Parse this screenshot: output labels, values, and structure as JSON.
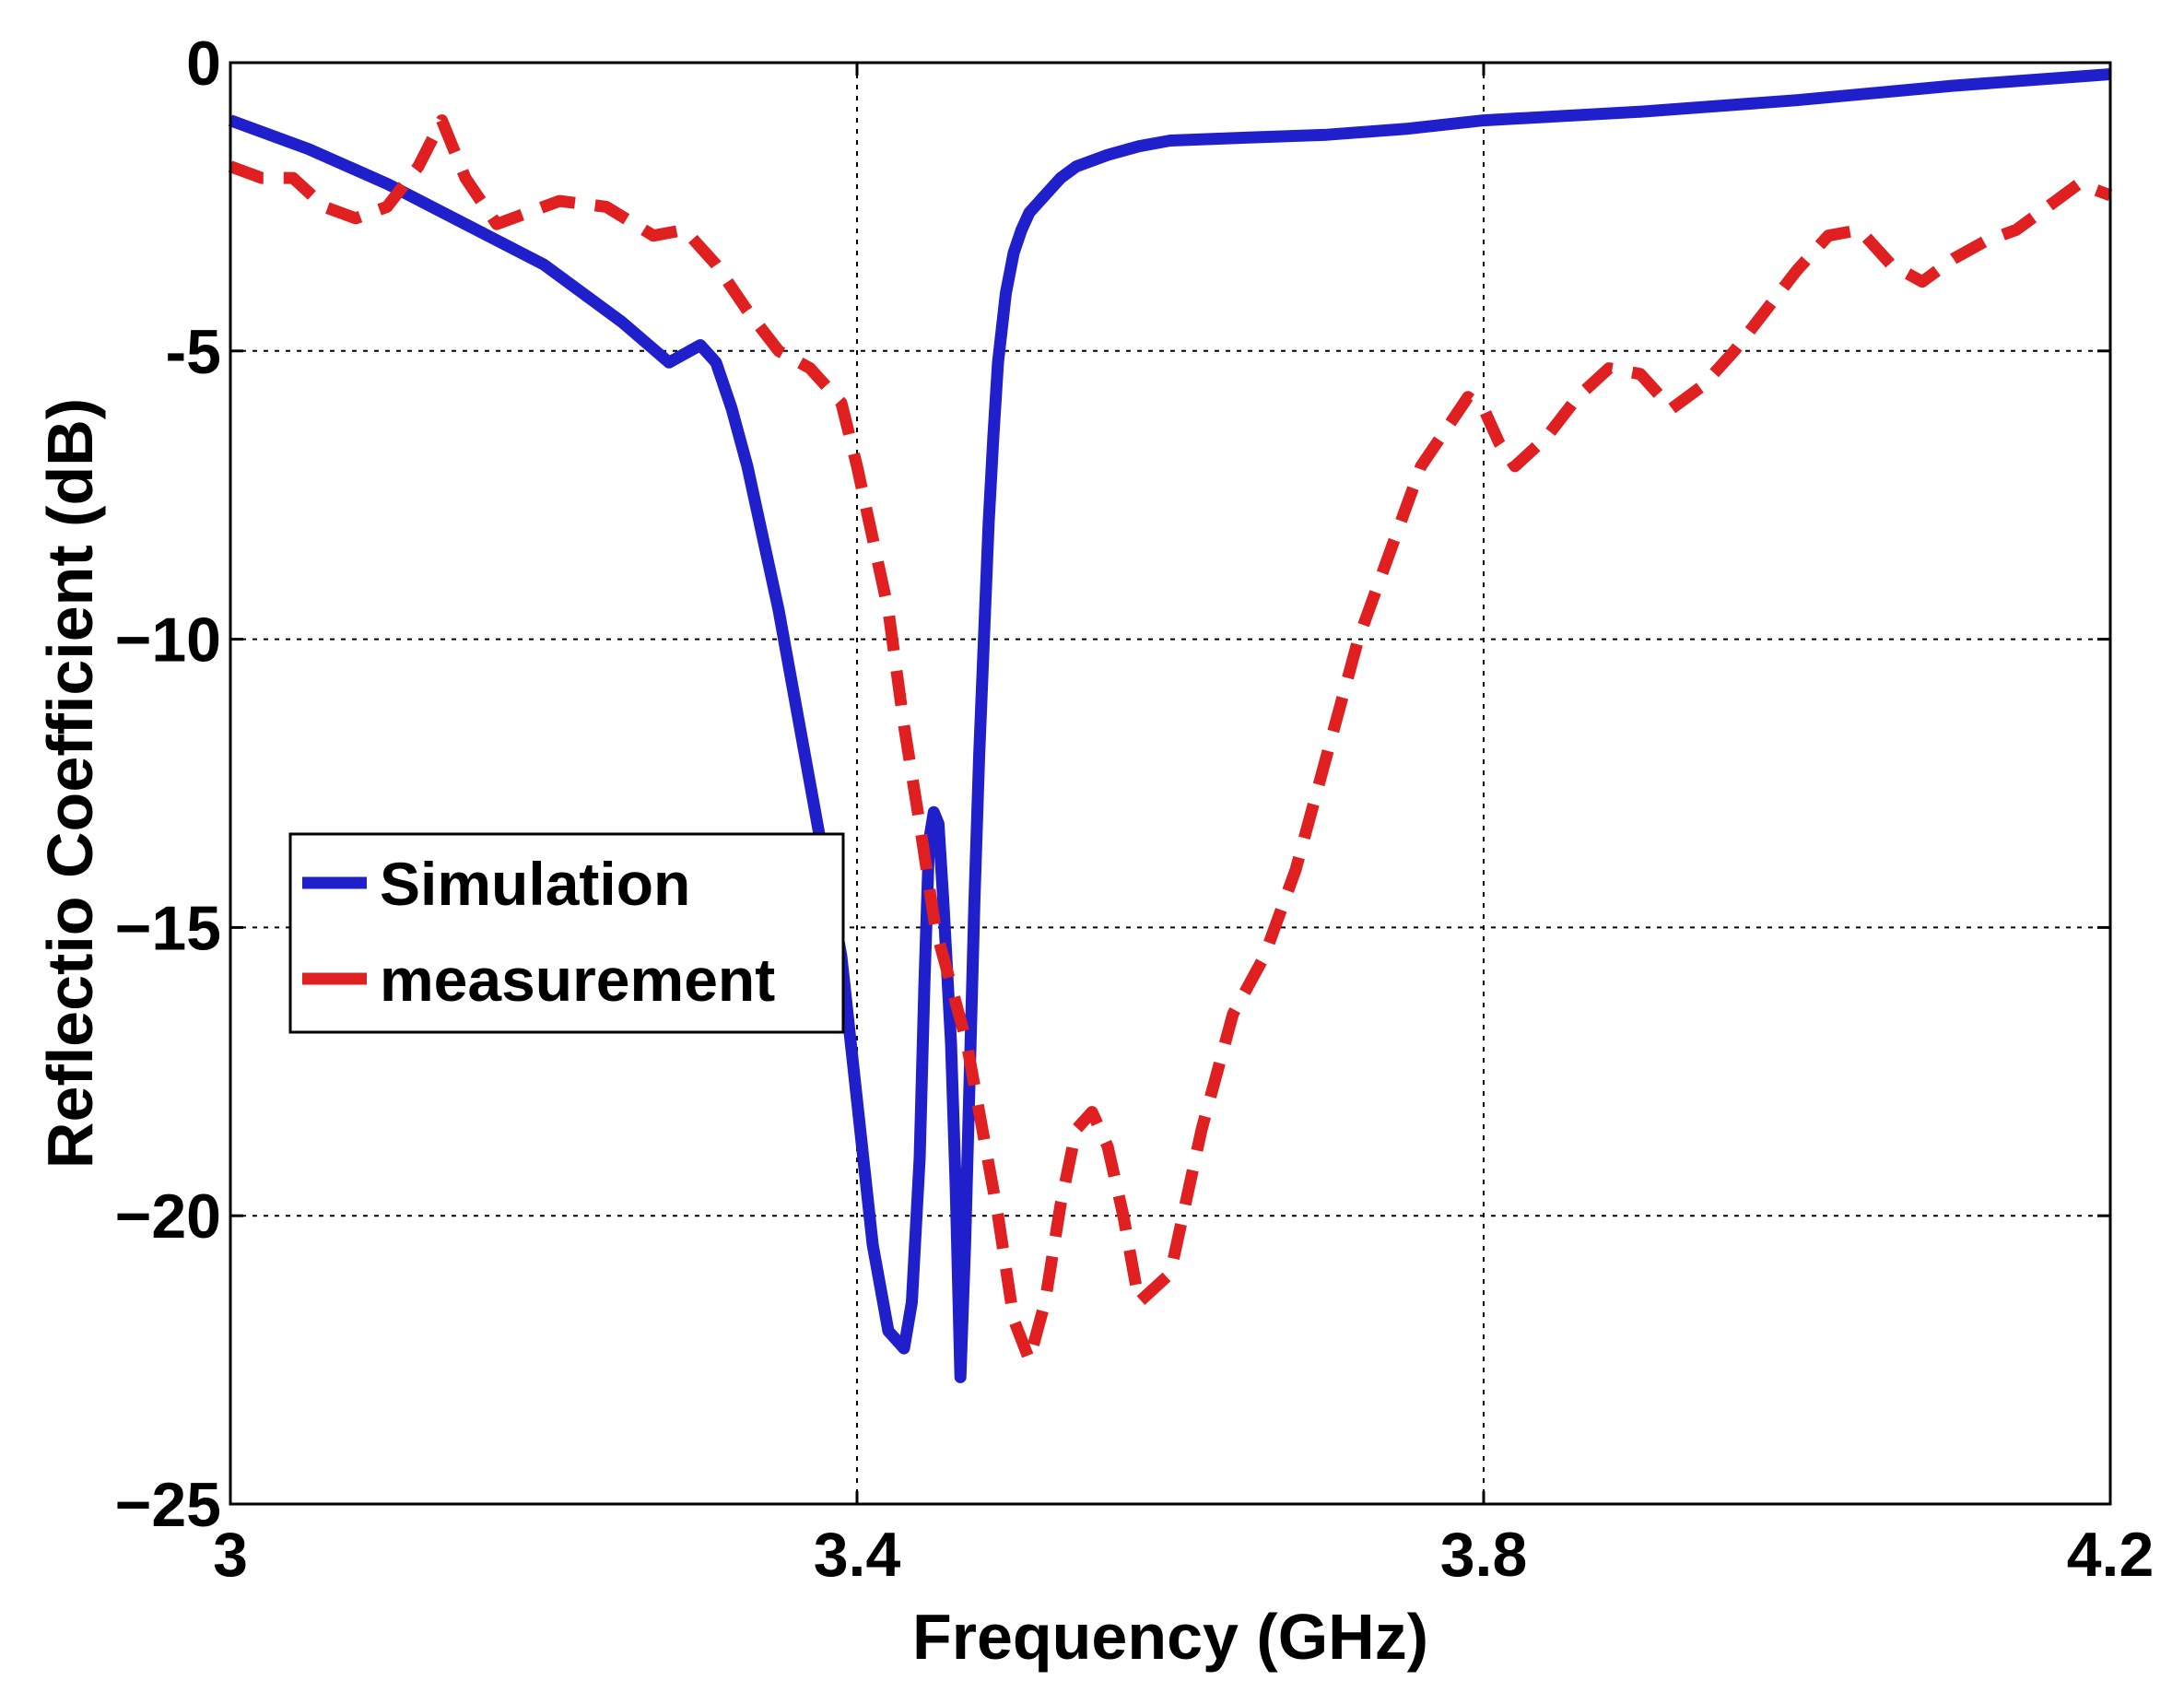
{
  "chart_data": {
    "type": "line",
    "title": "",
    "xlabel": "Frequency (GHz)",
    "ylabel": "Reflectio Coefficient (dB)",
    "xlim": [
      3,
      4.2
    ],
    "ylim": [
      -25,
      0
    ],
    "xticks": [
      3,
      3.4,
      3.8,
      4.2
    ],
    "xtick_labels": [
      "3",
      "3.4",
      "3.8",
      "4.2"
    ],
    "yticks": [
      0,
      -5,
      -10,
      -15,
      -20,
      -25
    ],
    "ytick_labels": [
      "0",
      "-5",
      "−10",
      "−15",
      "−20",
      "−25"
    ],
    "grid": true,
    "legend_position": "center-left",
    "series": [
      {
        "name": "Simulation",
        "color": "#1f1fcc",
        "style": "solid",
        "x": [
          3.0,
          3.05,
          3.1,
          3.15,
          3.2,
          3.25,
          3.28,
          3.3,
          3.31,
          3.32,
          3.33,
          3.35,
          3.37,
          3.39,
          3.4,
          3.41,
          3.42,
          3.43,
          3.435,
          3.44,
          3.443,
          3.446,
          3.449,
          3.452,
          3.455,
          3.46,
          3.463,
          3.466,
          3.469,
          3.472,
          3.475,
          3.478,
          3.481,
          3.484,
          3.487,
          3.49,
          3.495,
          3.5,
          3.505,
          3.51,
          3.52,
          3.53,
          3.54,
          3.55,
          3.56,
          3.58,
          3.6,
          3.65,
          3.7,
          3.75,
          3.8,
          3.9,
          4.0,
          4.1,
          4.2
        ],
        "y": [
          -1.0,
          -1.5,
          -2.1,
          -2.8,
          -3.5,
          -4.5,
          -5.2,
          -4.9,
          -5.2,
          -6.0,
          -7.0,
          -9.5,
          -12.5,
          -15.5,
          -18.0,
          -20.5,
          -22.0,
          -22.3,
          -21.5,
          -19.0,
          -16.0,
          -13.5,
          -13.0,
          -13.2,
          -14.5,
          -17.0,
          -19.5,
          -22.8,
          -20.5,
          -17.5,
          -14.5,
          -12.0,
          -10.0,
          -8.0,
          -6.5,
          -5.2,
          -4.0,
          -3.3,
          -2.9,
          -2.6,
          -2.3,
          -2.0,
          -1.8,
          -1.7,
          -1.6,
          -1.45,
          -1.35,
          -1.3,
          -1.25,
          -1.15,
          -1.0,
          -0.85,
          -0.65,
          -0.4,
          -0.2
        ]
      },
      {
        "name": "measurement",
        "color": "#e02020",
        "style": "dashed",
        "x": [
          3.0,
          3.02,
          3.04,
          3.06,
          3.08,
          3.1,
          3.12,
          3.135,
          3.15,
          3.17,
          3.19,
          3.21,
          3.24,
          3.27,
          3.29,
          3.31,
          3.33,
          3.35,
          3.37,
          3.39,
          3.4,
          3.42,
          3.43,
          3.44,
          3.45,
          3.46,
          3.47,
          3.48,
          3.49,
          3.5,
          3.51,
          3.52,
          3.53,
          3.54,
          3.55,
          3.56,
          3.57,
          3.58,
          3.6,
          3.62,
          3.64,
          3.66,
          3.68,
          3.7,
          3.72,
          3.74,
          3.76,
          3.78,
          3.79,
          3.8,
          3.81,
          3.82,
          3.84,
          3.86,
          3.88,
          3.9,
          3.92,
          3.94,
          3.96,
          3.98,
          4.0,
          4.02,
          4.04,
          4.06,
          4.08,
          4.1,
          4.12,
          4.14,
          4.16,
          4.18,
          4.2
        ],
        "y": [
          -1.8,
          -2.0,
          -2.0,
          -2.5,
          -2.7,
          -2.5,
          -1.8,
          -1.0,
          -2.0,
          -2.8,
          -2.6,
          -2.4,
          -2.5,
          -3.0,
          -2.9,
          -3.5,
          -4.3,
          -5.0,
          -5.3,
          -5.9,
          -7.0,
          -9.5,
          -11.5,
          -13.2,
          -15.0,
          -16.0,
          -17.0,
          -18.5,
          -20.0,
          -21.8,
          -22.5,
          -21.5,
          -19.8,
          -18.5,
          -18.2,
          -18.8,
          -20.0,
          -21.5,
          -21.0,
          -18.5,
          -16.5,
          -15.5,
          -14.0,
          -12.0,
          -10.0,
          -8.5,
          -7.0,
          -6.2,
          -5.8,
          -6.0,
          -6.6,
          -7.0,
          -6.5,
          -5.8,
          -5.3,
          -5.4,
          -6.0,
          -5.6,
          -5.0,
          -4.3,
          -3.6,
          -3.0,
          -2.9,
          -3.5,
          -3.8,
          -3.4,
          -3.1,
          -2.9,
          -2.5,
          -2.1,
          -2.3
        ]
      }
    ]
  }
}
